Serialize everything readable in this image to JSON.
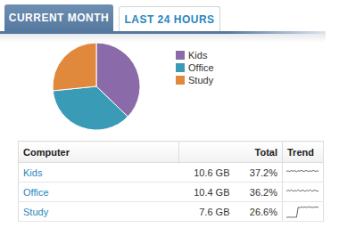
{
  "tabs": [
    {
      "label": "CURRENT MONTH",
      "active": true
    },
    {
      "label": "LAST 24 HOURS",
      "active": false
    }
  ],
  "chart_data": {
    "type": "pie",
    "categories": [
      "Kids",
      "Office",
      "Study"
    ],
    "values": [
      37.2,
      36.2,
      26.6
    ],
    "colors": [
      "#8a6aa8",
      "#3a9bb6",
      "#e0883c"
    ],
    "legend": "right",
    "data_labels": false
  },
  "table": {
    "header": [
      "Computer",
      "Total",
      "Trend"
    ],
    "rows": [
      {
        "computer": "Kids",
        "total": "10.6 GB",
        "share": "37.2%",
        "trend": [
          6.2,
          6.6,
          6.1,
          6.8,
          6.3,
          6.7,
          6.0,
          6.6,
          6.4,
          6.9,
          6.2,
          6.5,
          6.8,
          6.1,
          6.6,
          6.3,
          6.9,
          6.2,
          6.5,
          6.4
        ]
      },
      {
        "computer": "Office",
        "total": "10.4 GB",
        "share": "36.2%",
        "trend": [
          5.8,
          6.9,
          6.2,
          7.0,
          5.9,
          6.6,
          6.1,
          7.1,
          6.0,
          6.5,
          6.8,
          5.9,
          6.7,
          6.2,
          7.0,
          6.1,
          6.4,
          6.9,
          6.0,
          6.3
        ]
      },
      {
        "computer": "Study",
        "total": "7.6 GB",
        "share": "26.6%",
        "trend": [
          1.5,
          1.5,
          1.6,
          1.5,
          1.5,
          1.6,
          1.5,
          8.6,
          8.1,
          8.9,
          8.3,
          8.8,
          8.2,
          9.0,
          8.4,
          8.7,
          8.2,
          8.9,
          8.5,
          8.6
        ]
      }
    ]
  }
}
